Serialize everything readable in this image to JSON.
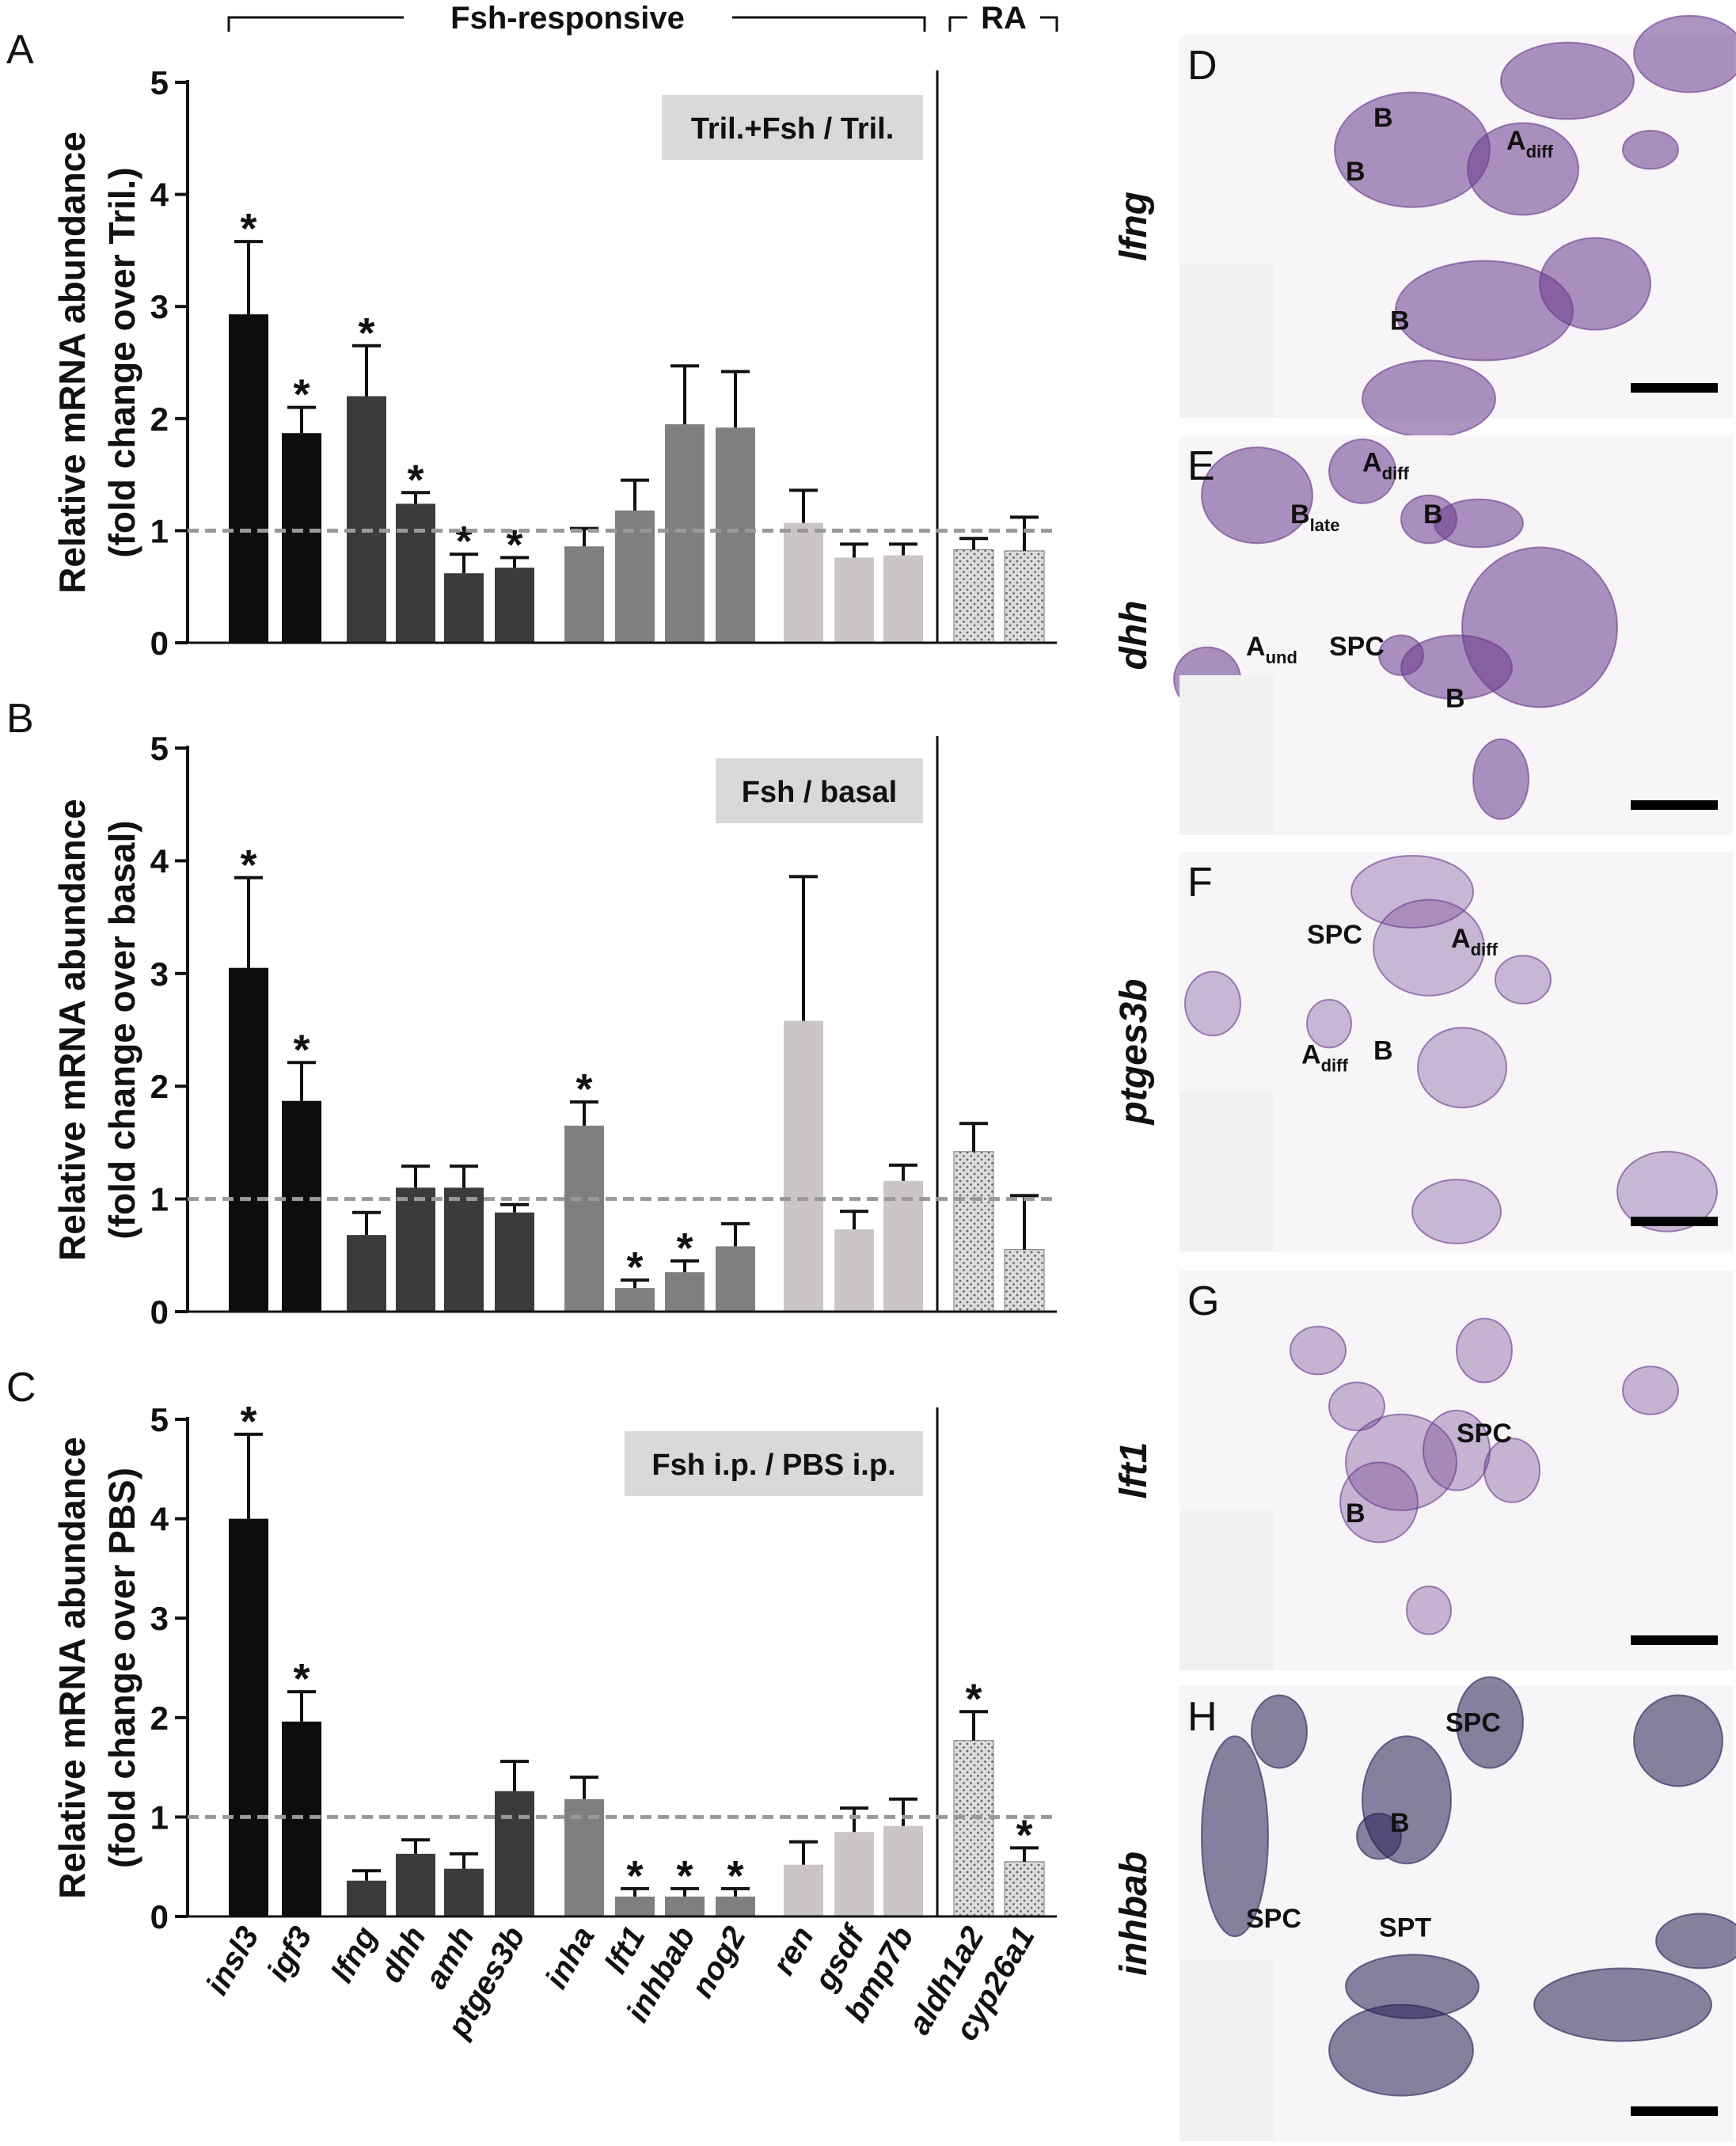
{
  "header": {
    "group_fsh": "Fsh-responsive",
    "group_ra": "RA"
  },
  "gene_labels": [
    "insl3",
    "igf3",
    "lfng",
    "dhh",
    "amh",
    "ptges3b",
    "inha",
    "lft1",
    "inhbab",
    "nog2",
    "ren",
    "gsdf",
    "bmp7b",
    "aldh1a2",
    "cyp26a1"
  ],
  "colors": {
    "group1": "#0d0d0d",
    "group2": "#3b3b3b",
    "group3": "#7f7f7f",
    "group4": "#ccc5c8",
    "ra": "#dcdcdc",
    "reference_line": "#999999",
    "label_box": "#d9d9d9",
    "stain": "#6a3a8c"
  },
  "chart_data": [
    {
      "type": "bar",
      "panel": "A",
      "ylabel_line1": "Relative mRNA abundance",
      "ylabel_line2": "(fold change over Tril.)",
      "condition": "Tril.+Fsh / Tril.",
      "ylim": [
        0,
        5
      ],
      "yticks": [
        "0",
        "1",
        "2",
        "3",
        "4",
        "5"
      ],
      "reference_line": 1,
      "categories": [
        "insl3",
        "igf3",
        "lfng",
        "dhh",
        "amh",
        "ptges3b",
        "inha",
        "lft1",
        "inhbab",
        "nog2",
        "ren",
        "gsdf",
        "bmp7b",
        "aldh1a2",
        "cyp26a1"
      ],
      "values": [
        2.93,
        1.87,
        2.2,
        1.24,
        0.62,
        0.67,
        0.86,
        1.18,
        1.95,
        1.92,
        1.07,
        0.76,
        0.78,
        0.83,
        0.82
      ],
      "errors": [
        0.65,
        0.23,
        0.45,
        0.1,
        0.17,
        0.09,
        0.16,
        0.27,
        0.52,
        0.5,
        0.29,
        0.12,
        0.1,
        0.1,
        0.3
      ],
      "significant": [
        true,
        true,
        true,
        true,
        true,
        true,
        false,
        false,
        false,
        false,
        false,
        false,
        false,
        false,
        false
      ]
    },
    {
      "type": "bar",
      "panel": "B",
      "ylabel_line1": "Relative mRNA abundance",
      "ylabel_line2": "(fold change over basal)",
      "condition": "Fsh / basal",
      "ylim": [
        0,
        5
      ],
      "yticks": [
        "0",
        "1",
        "2",
        "3",
        "4",
        "5"
      ],
      "reference_line": 1,
      "categories": [
        "insl3",
        "igf3",
        "lfng",
        "dhh",
        "amh",
        "ptges3b",
        "inha",
        "lft1",
        "inhbab",
        "nog2",
        "ren",
        "gsdf",
        "bmp7b",
        "aldh1a2",
        "cyp26a1"
      ],
      "values": [
        3.05,
        1.87,
        0.68,
        1.1,
        1.1,
        0.88,
        1.65,
        0.21,
        0.35,
        0.58,
        2.58,
        0.73,
        1.16,
        1.42,
        0.55
      ],
      "errors": [
        0.8,
        0.34,
        0.2,
        0.19,
        0.19,
        0.07,
        0.21,
        0.07,
        0.1,
        0.2,
        1.28,
        0.16,
        0.14,
        0.25,
        0.48
      ],
      "significant": [
        true,
        true,
        false,
        false,
        false,
        false,
        true,
        true,
        true,
        false,
        false,
        false,
        false,
        false,
        false
      ]
    },
    {
      "type": "bar",
      "panel": "C",
      "ylabel_line1": "Relative mRNA abundance",
      "ylabel_line2": "(fold change over PBS)",
      "condition": "Fsh i.p. / PBS i.p.",
      "ylim": [
        0,
        5
      ],
      "yticks": [
        "0",
        "1",
        "2",
        "3",
        "4",
        "5"
      ],
      "reference_line": 1,
      "categories": [
        "insl3",
        "igf3",
        "lfng",
        "dhh",
        "amh",
        "ptges3b",
        "inha",
        "lft1",
        "inhbab",
        "nog2",
        "ren",
        "gsdf",
        "bmp7b",
        "aldh1a2",
        "cyp26a1"
      ],
      "values": [
        4.0,
        1.96,
        0.36,
        0.63,
        0.48,
        1.26,
        1.18,
        0.2,
        0.2,
        0.2,
        0.52,
        0.85,
        0.91,
        1.77,
        0.55
      ],
      "errors": [
        0.85,
        0.3,
        0.1,
        0.14,
        0.15,
        0.3,
        0.22,
        0.08,
        0.08,
        0.08,
        0.23,
        0.24,
        0.27,
        0.29,
        0.14
      ],
      "significant": [
        true,
        true,
        false,
        false,
        false,
        false,
        false,
        true,
        true,
        true,
        false,
        false,
        false,
        true,
        true
      ]
    }
  ],
  "micrographs": [
    {
      "panel": "D",
      "gene": "lfng",
      "annotations": [
        {
          "main": "B",
          "sub": ""
        },
        {
          "main": "B",
          "sub": ""
        },
        {
          "main": "A",
          "sub": "diff"
        },
        {
          "main": "B",
          "sub": ""
        }
      ]
    },
    {
      "panel": "E",
      "gene": "dhh",
      "annotations": [
        {
          "main": "A",
          "sub": "diff"
        },
        {
          "main": "B",
          "sub": "late"
        },
        {
          "main": "B",
          "sub": ""
        },
        {
          "main": "A",
          "sub": "und"
        },
        {
          "main": "SPC",
          "sub": ""
        },
        {
          "main": "B",
          "sub": ""
        }
      ]
    },
    {
      "panel": "F",
      "gene": "ptges3b",
      "annotations": [
        {
          "main": "SPC",
          "sub": ""
        },
        {
          "main": "A",
          "sub": "diff"
        },
        {
          "main": "A",
          "sub": "diff"
        },
        {
          "main": "B",
          "sub": ""
        }
      ]
    },
    {
      "panel": "G",
      "gene": "lft1",
      "annotations": [
        {
          "main": "SPC",
          "sub": ""
        },
        {
          "main": "B",
          "sub": ""
        }
      ]
    },
    {
      "panel": "H",
      "gene": "inhbab",
      "annotations": [
        {
          "main": "SPC",
          "sub": ""
        },
        {
          "main": "B",
          "sub": ""
        },
        {
          "main": "SPC",
          "sub": ""
        },
        {
          "main": "SPT",
          "sub": ""
        }
      ]
    }
  ]
}
